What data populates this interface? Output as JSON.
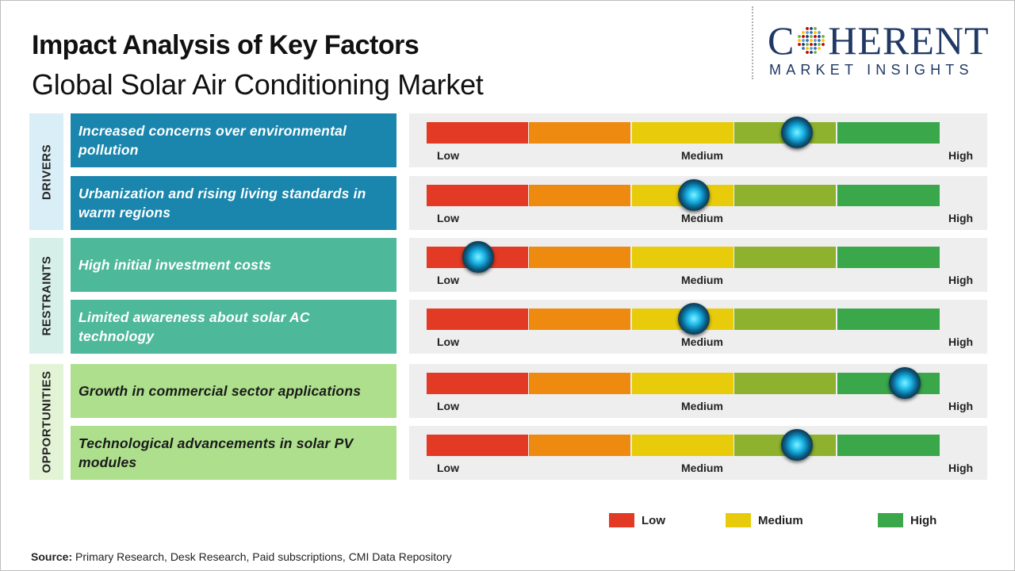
{
  "title": "Impact Analysis of Key Factors",
  "subtitle": "Global Solar Air Conditioning Market",
  "logo": {
    "main_before": "C",
    "main_after": "HERENT",
    "sub": "MARKET INSIGHTS",
    "color": "#1f3864"
  },
  "categories": [
    {
      "label": "DRIVERS",
      "color": "#d9eef6"
    },
    {
      "label": "RESTRAINTS",
      "color": "#d7efe9"
    },
    {
      "label": "OPPORTUNITIES",
      "color": "#e3f3d6"
    }
  ],
  "scale_labels": {
    "low": "Low",
    "medium": "Medium",
    "high": "High"
  },
  "segment_colors": [
    "#e23a24",
    "#ef8a10",
    "#e8cc0c",
    "#8fb22e",
    "#3aa74a"
  ],
  "chart_data": {
    "type": "gauge",
    "title": "Impact Analysis of Key Factors",
    "subtitle": "Global Solar Air Conditioning Market",
    "scale": [
      "Low",
      "Medium",
      "High"
    ],
    "range": [
      0,
      1
    ],
    "factors": [
      {
        "category": "Drivers",
        "text": "Increased concerns over environmental pollution",
        "impact": 0.72,
        "box_color": "#1a86ad",
        "text_style": "dark"
      },
      {
        "category": "Drivers",
        "text": "Urbanization and rising living standards in warm regions",
        "impact": 0.52,
        "box_color": "#1a86ad",
        "text_style": "dark"
      },
      {
        "category": "Restraints",
        "text": "High initial investment costs",
        "impact": 0.1,
        "box_color": "#4eb89b",
        "text_style": "dark"
      },
      {
        "category": "Restraints",
        "text": "Limited awareness about solar AC technology",
        "impact": 0.52,
        "box_color": "#4eb89b",
        "text_style": "dark"
      },
      {
        "category": "Opportunities",
        "text": "Growth in commercial sector applications",
        "impact": 0.93,
        "box_color": "#addf8c",
        "text_style": "light"
      },
      {
        "category": "Opportunities",
        "text": "Technological advancements in solar PV modules",
        "impact": 0.72,
        "box_color": "#addf8c",
        "text_style": "light"
      }
    ]
  },
  "legend": [
    {
      "label": "Low",
      "color": "#e23a24"
    },
    {
      "label": "Medium",
      "color": "#e8cc0c"
    },
    {
      "label": "High",
      "color": "#3aa74a"
    }
  ],
  "source": {
    "label": "Source:",
    "text": " Primary Research, Desk Research, Paid subscriptions, CMI Data Repository"
  }
}
